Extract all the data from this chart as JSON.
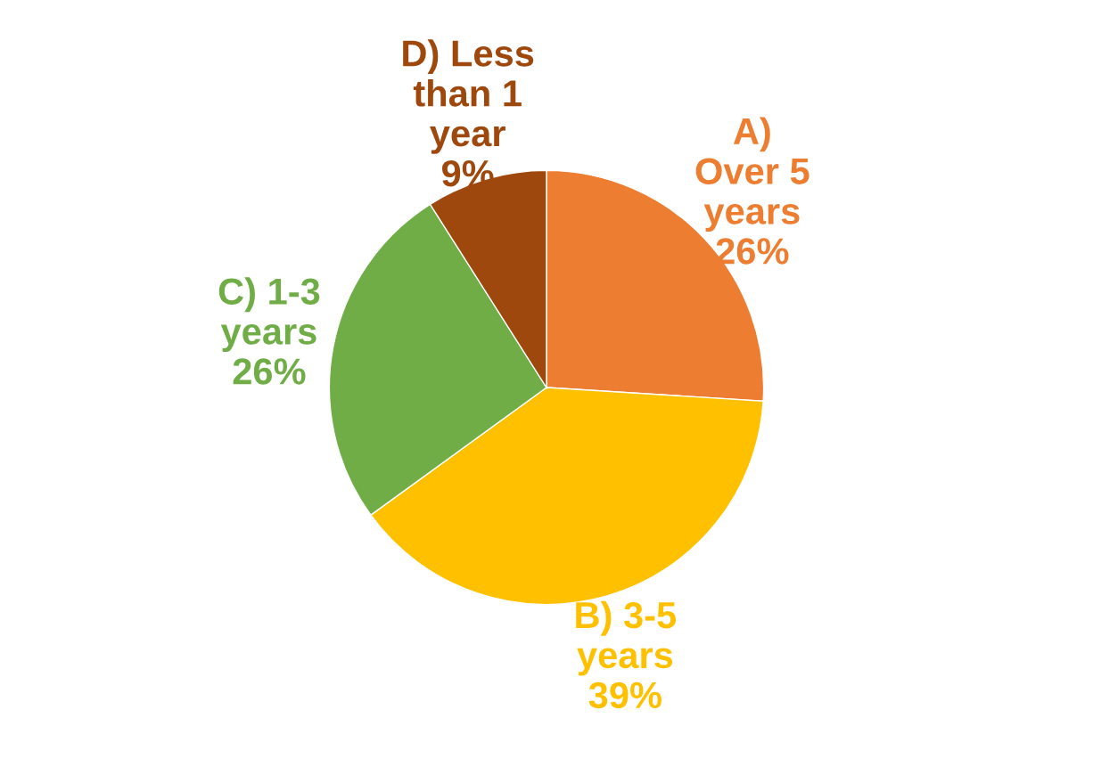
{
  "chart_data": {
    "type": "pie",
    "categories": [
      "A)\nOver 5\nyears",
      "B) 3-5\nyears",
      "C) 1-3\nyears",
      "D) Less\nthan 1\nyear"
    ],
    "values": [
      26,
      39,
      26,
      9
    ],
    "colors": [
      "#ed7d31",
      "#ffc000",
      "#70ad47",
      "#9e480e"
    ],
    "value_labels": [
      "26%",
      "39%",
      "26%",
      "9%"
    ],
    "legend": false
  }
}
